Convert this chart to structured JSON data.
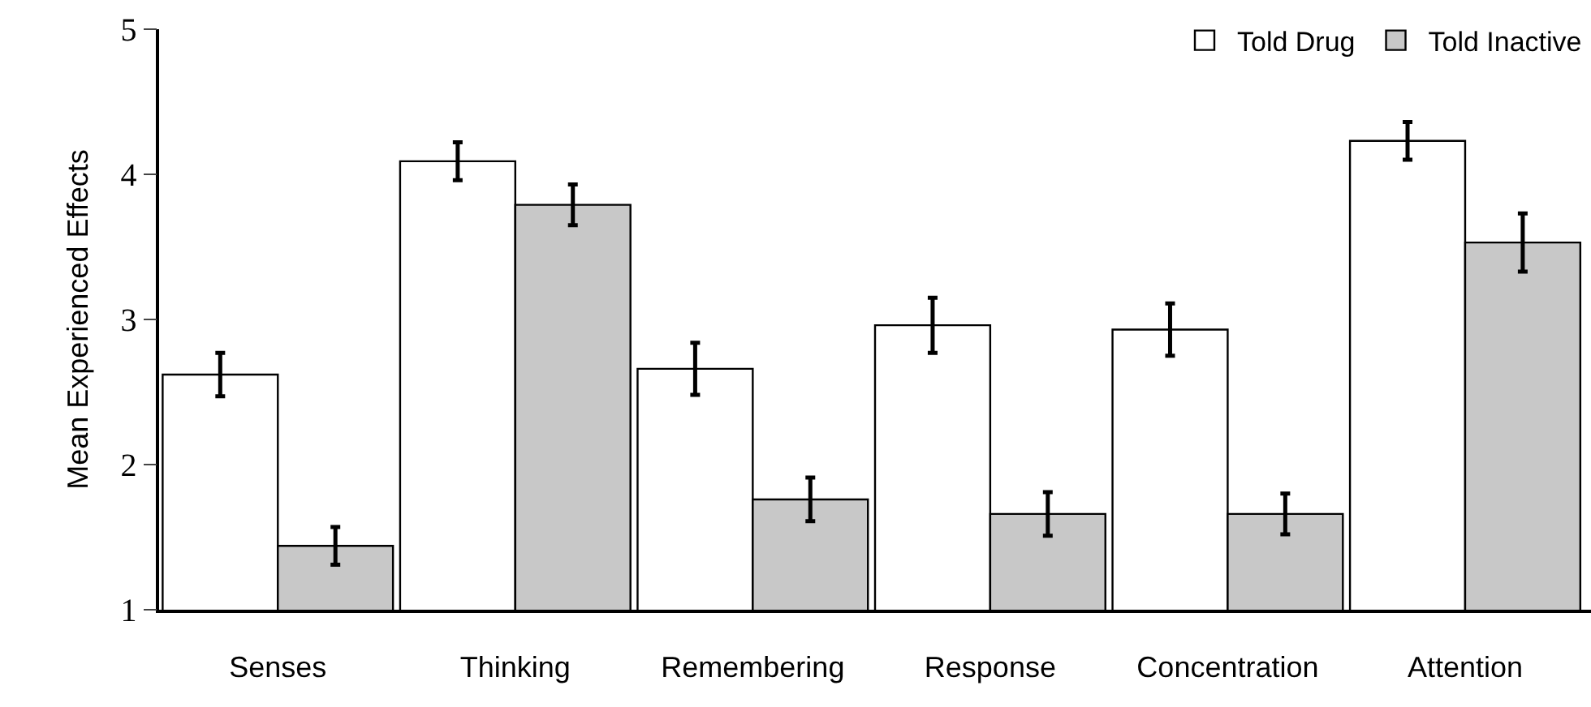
{
  "chart_data": {
    "type": "bar",
    "ylabel": "Mean Experienced Effects",
    "categories": [
      "Senses",
      "Thinking",
      "Remembering",
      "Response",
      "Concentration",
      "Attention"
    ],
    "series": [
      {
        "name": "Told Drug",
        "color": "#ffffff",
        "values": [
          2.62,
          4.09,
          2.66,
          2.96,
          2.93,
          4.23
        ],
        "errors": [
          0.15,
          0.13,
          0.18,
          0.19,
          0.18,
          0.13
        ]
      },
      {
        "name": "Told Inactive",
        "color": "#c8c8c8",
        "values": [
          1.44,
          3.79,
          1.76,
          1.66,
          1.66,
          3.53
        ],
        "errors": [
          0.13,
          0.14,
          0.15,
          0.15,
          0.14,
          0.2
        ]
      }
    ],
    "ylim": [
      1,
      5
    ],
    "yticks": [
      1,
      2,
      3,
      4,
      5
    ],
    "legend": "top right"
  }
}
